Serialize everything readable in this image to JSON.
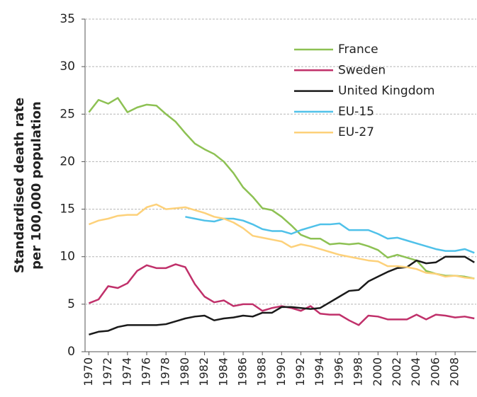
{
  "chart_data": {
    "type": "line",
    "ylabel": [
      "Standardised death rate",
      "per 100,000 population"
    ],
    "x": [
      1970,
      1971,
      1972,
      1973,
      1974,
      1975,
      1976,
      1977,
      1978,
      1979,
      1980,
      1981,
      1982,
      1983,
      1984,
      1985,
      1986,
      1987,
      1988,
      1989,
      1990,
      1991,
      1992,
      1993,
      1994,
      1995,
      1996,
      1997,
      1998,
      1999,
      2000,
      2001,
      2002,
      2003,
      2004,
      2005,
      2006,
      2007,
      2008,
      2009,
      2010
    ],
    "series": [
      {
        "name": "France",
        "color": "#8dc153",
        "values": [
          25.2,
          26.5,
          26.1,
          26.7,
          25.2,
          25.7,
          26.0,
          25.9,
          25.0,
          24.2,
          23.0,
          21.9,
          21.3,
          20.8,
          20.0,
          18.8,
          17.3,
          16.3,
          15.1,
          14.9,
          14.2,
          13.3,
          12.3,
          11.9,
          11.9,
          11.3,
          11.4,
          11.3,
          11.4,
          11.1,
          10.7,
          9.9,
          10.2,
          9.9,
          9.6,
          8.5,
          8.2,
          8.0,
          8.0,
          7.9,
          7.7
        ]
      },
      {
        "name": "Sweden",
        "color": "#c0306a",
        "values": [
          5.1,
          5.5,
          6.9,
          6.7,
          7.2,
          8.5,
          9.1,
          8.8,
          8.8,
          9.2,
          8.9,
          7.1,
          5.8,
          5.2,
          5.4,
          4.8,
          5.0,
          5.0,
          4.3,
          4.6,
          4.8,
          4.6,
          4.3,
          4.8,
          4.0,
          3.9,
          3.9,
          3.3,
          2.8,
          3.8,
          3.7,
          3.4,
          3.4,
          3.4,
          3.9,
          3.4,
          3.9,
          3.8,
          3.6,
          3.7,
          3.5
        ]
      },
      {
        "name": "United Kingdom",
        "color": "#1a1a1a",
        "values": [
          1.8,
          2.1,
          2.2,
          2.6,
          2.8,
          2.8,
          2.8,
          2.8,
          2.9,
          3.2,
          3.5,
          3.7,
          3.8,
          3.3,
          3.5,
          3.6,
          3.8,
          3.7,
          4.1,
          4.1,
          4.7,
          4.7,
          4.6,
          4.5,
          4.6,
          5.2,
          5.8,
          6.4,
          6.5,
          7.4,
          7.9,
          8.4,
          8.8,
          8.9,
          9.6,
          9.3,
          9.4,
          10.0,
          10.0,
          10.0,
          9.4
        ]
      },
      {
        "name": "EU-15",
        "color": "#4fc1e9",
        "values": [
          null,
          null,
          null,
          null,
          null,
          null,
          null,
          null,
          null,
          null,
          14.2,
          14.0,
          13.8,
          13.7,
          14.0,
          14.0,
          13.8,
          13.4,
          12.9,
          12.7,
          12.7,
          12.4,
          12.8,
          13.1,
          13.4,
          13.4,
          13.5,
          12.8,
          12.8,
          12.8,
          12.4,
          11.9,
          12.0,
          11.7,
          11.4,
          11.1,
          10.8,
          10.6,
          10.6,
          10.8,
          10.4
        ]
      },
      {
        "name": "EU-27",
        "color": "#fdd17a",
        "values": [
          13.4,
          13.8,
          14.0,
          14.3,
          14.4,
          14.4,
          15.2,
          15.5,
          15.0,
          15.1,
          15.2,
          14.9,
          14.6,
          14.2,
          14.0,
          13.6,
          13.0,
          12.2,
          12.0,
          11.8,
          11.6,
          11.0,
          11.3,
          11.1,
          10.8,
          10.5,
          10.2,
          10.0,
          9.8,
          9.6,
          9.5,
          9.0,
          9.0,
          8.9,
          8.7,
          8.3,
          8.2,
          7.9,
          8.0,
          7.8,
          7.7
        ]
      }
    ],
    "xlim": [
      1969.6,
      2010.2
    ],
    "xticks": [
      1970,
      1972,
      1974,
      1976,
      1978,
      1980,
      1982,
      1984,
      1986,
      1988,
      1990,
      1992,
      1994,
      1996,
      1998,
      2000,
      2002,
      2004,
      2006,
      2008
    ],
    "ylim": [
      0,
      35
    ],
    "yticks": [
      0,
      5,
      10,
      15,
      20,
      25,
      30,
      35
    ],
    "grid": true,
    "legend": "upper right"
  }
}
